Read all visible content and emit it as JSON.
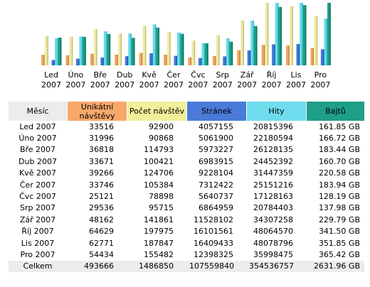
{
  "chart_data": {
    "type": "bar",
    "categories": [
      [
        "Led",
        "2007"
      ],
      [
        "Úno",
        "2007"
      ],
      [
        "Bře",
        "2007"
      ],
      [
        "Dub",
        "2007"
      ],
      [
        "Kvě",
        "2007"
      ],
      [
        "Čer",
        "2007"
      ],
      [
        "Čvc",
        "2007"
      ],
      [
        "Srp",
        "2007"
      ],
      [
        "Zář",
        "2007"
      ],
      [
        "Říj",
        "2007"
      ],
      [
        "Lis",
        "2007"
      ],
      [
        "Pro",
        "2007"
      ]
    ],
    "series": [
      {
        "name": "Unikátní návštěvy",
        "color": "#f0a860",
        "values": [
          33516,
          31996,
          36818,
          33671,
          39266,
          33746,
          25121,
          29536,
          48162,
          64629,
          62771,
          54434
        ]
      },
      {
        "name": "Počet návštěv",
        "color": "#eee8a0",
        "values": [
          92900,
          90868,
          114793,
          100421,
          124706,
          105384,
          78898,
          95715,
          141861,
          197975,
          187847,
          155482
        ]
      },
      {
        "name": "Stránek",
        "color": "#4478d8",
        "values": [
          4057155,
          5061900,
          5973227,
          6983915,
          9228104,
          7312422,
          5640737,
          6864959,
          11528102,
          16101561,
          16409433,
          12398325
        ]
      },
      {
        "name": "Hity",
        "color": "#66dcea",
        "values": [
          20815396,
          22180594,
          26128135,
          24452392,
          31447359,
          25151216,
          17128163,
          20784403,
          34307258,
          48064570,
          48078796,
          35998475
        ]
      },
      {
        "name": "Bajtů",
        "color": "#1a9c84",
        "values": [
          161.85,
          166.72,
          183.44,
          160.7,
          220.58,
          183.94,
          128.19,
          137.98,
          229.79,
          341.5,
          351.85,
          365.42
        ]
      }
    ],
    "bar_groups": [
      [
        0,
        1
      ],
      [
        2,
        3,
        4
      ]
    ]
  },
  "table": {
    "headers": [
      {
        "label": "Měsíc",
        "color": "#ececec"
      },
      {
        "label": "Unikátní návštěvy",
        "color": "#f9a86a"
      },
      {
        "label": "Počet návštěv",
        "color": "#f1ef9a"
      },
      {
        "label": "Stránek",
        "color": "#4a7ad8"
      },
      {
        "label": "Hity",
        "color": "#6fdcee"
      },
      {
        "label": "Bajtů",
        "color": "#1f9e88"
      }
    ],
    "rows": [
      [
        "Led 2007",
        "33516",
        "92900",
        "4057155",
        "20815396",
        "161.85 GB"
      ],
      [
        "Úno 2007",
        "31996",
        "90868",
        "5061900",
        "22180594",
        "166.72 GB"
      ],
      [
        "Bře 2007",
        "36818",
        "114793",
        "5973227",
        "26128135",
        "183.44 GB"
      ],
      [
        "Dub 2007",
        "33671",
        "100421",
        "6983915",
        "24452392",
        "160.70 GB"
      ],
      [
        "Kvě 2007",
        "39266",
        "124706",
        "9228104",
        "31447359",
        "220.58 GB"
      ],
      [
        "Čer 2007",
        "33746",
        "105384",
        "7312422",
        "25151216",
        "183.94 GB"
      ],
      [
        "Čvc 2007",
        "25121",
        "78898",
        "5640737",
        "17128163",
        "128.19 GB"
      ],
      [
        "Srp 2007",
        "29536",
        "95715",
        "6864959",
        "20784403",
        "137.98 GB"
      ],
      [
        "Zář 2007",
        "48162",
        "141861",
        "11528102",
        "34307258",
        "229.79 GB"
      ],
      [
        "Říj 2007",
        "64629",
        "197975",
        "16101561",
        "48064570",
        "341.50 GB"
      ],
      [
        "Lis 2007",
        "62771",
        "187847",
        "16409433",
        "48078796",
        "351.85 GB"
      ],
      [
        "Pro 2007",
        "54434",
        "155482",
        "12398325",
        "35998475",
        "365.42 GB"
      ]
    ],
    "total": [
      "Celkem",
      "493666",
      "1486850",
      "107559840",
      "354536757",
      "2631.96 GB"
    ]
  }
}
